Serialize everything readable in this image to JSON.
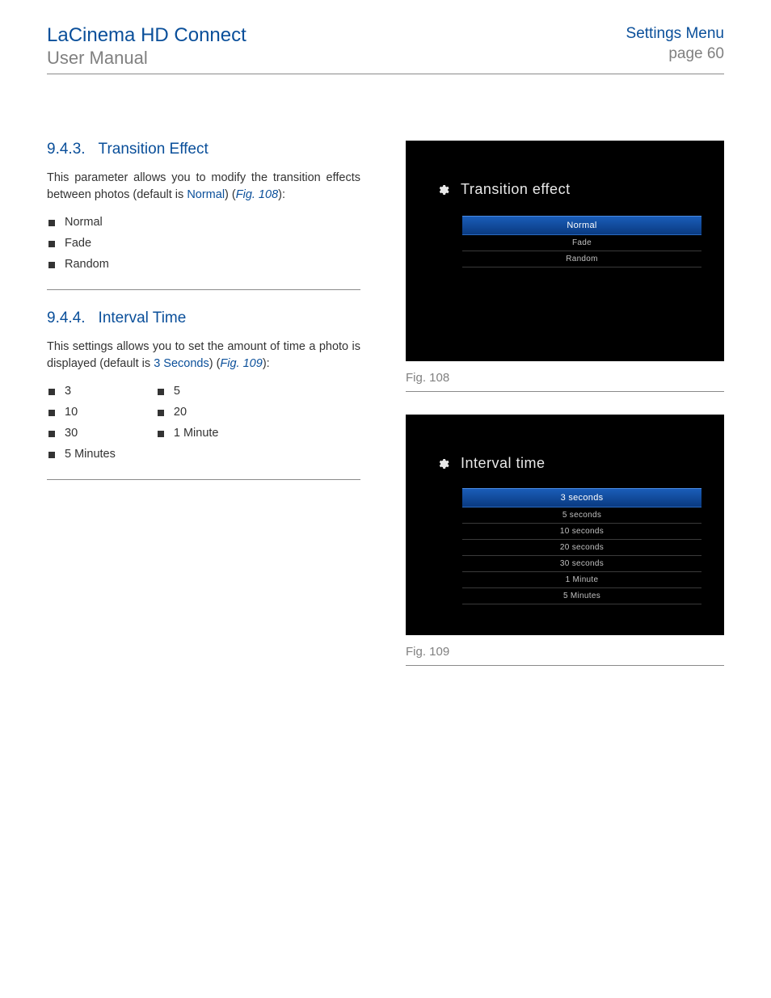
{
  "header": {
    "doc_title": "LaCinema HD Connect",
    "doc_subtitle": "User Manual",
    "section_name": "Settings Menu",
    "page_label": "page 60"
  },
  "section_943": {
    "number": "9.4.3.",
    "title": "Transition Effect",
    "body_pre": "This parameter allows you to modify the transition effects between photos (default is ",
    "default_label": "Normal",
    "body_mid": ") (",
    "fig_ref": "Fig. 108",
    "body_post": "):",
    "items": [
      "Normal",
      "Fade",
      "Random"
    ]
  },
  "section_944": {
    "number": "9.4.4.",
    "title": "Interval Time",
    "body_pre": "This settings allows you to set the amount of time a photo is displayed (default is ",
    "default_label": "3 Seconds",
    "body_mid": ") (",
    "fig_ref": "Fig. 109",
    "body_post": "):",
    "col1": [
      "3",
      "10",
      "30",
      "5 Minutes"
    ],
    "col2": [
      "5",
      "20",
      "1 Minute"
    ]
  },
  "figures": {
    "fig108": {
      "caption": "Fig. 108",
      "screen_title": "Transition effect",
      "rows": [
        {
          "label": "Normal",
          "selected": true
        },
        {
          "label": "Fade",
          "selected": false
        },
        {
          "label": "Random",
          "selected": false
        }
      ]
    },
    "fig109": {
      "caption": "Fig. 109",
      "screen_title": "Interval time",
      "rows": [
        {
          "label": "3 seconds",
          "selected": true
        },
        {
          "label": "5 seconds",
          "selected": false
        },
        {
          "label": "10 seconds",
          "selected": false
        },
        {
          "label": "20 seconds",
          "selected": false
        },
        {
          "label": "30 seconds",
          "selected": false
        },
        {
          "label": "1 Minute",
          "selected": false
        },
        {
          "label": "5 Minutes",
          "selected": false
        }
      ]
    }
  },
  "colors": {
    "brand_blue": "#0a4f9a",
    "muted_gray": "#808080",
    "text": "#333333",
    "rule": "#8a8a8a",
    "screen_bg": "#000000",
    "screen_sel_top": "#1a5db8",
    "screen_sel_bot": "#0a3a80",
    "screen_row_border": "#3a3a3a"
  }
}
